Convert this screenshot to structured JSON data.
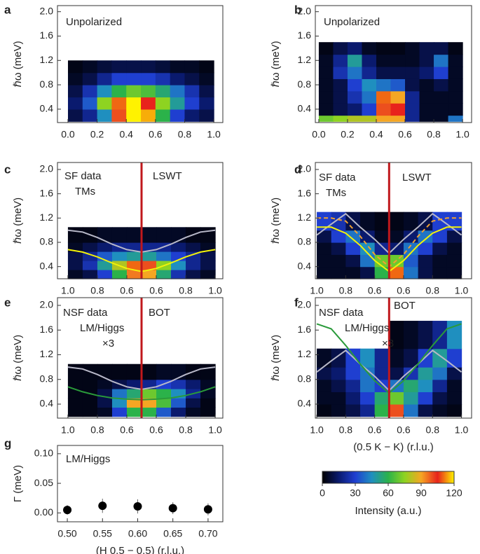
{
  "chart_data": [
    {
      "type": "heatmap",
      "label": "a",
      "annotations": [
        "Unpolarized"
      ],
      "ylabel": "ℏω (meV)",
      "xlim": [
        -0.072,
        1.062
      ],
      "ylim": [
        0.18,
        2.1
      ],
      "xticks": [
        {
          "value": 0,
          "label": "0.0"
        },
        0.2,
        0.4,
        0.6,
        0.8,
        {
          "value": 1,
          "label": "1.0"
        }
      ],
      "yticks": [
        0.4,
        0.8,
        1.2,
        1.6,
        {
          "value": 2,
          "label": "2.0"
        }
      ],
      "x_edges": [
        0,
        0.1,
        0.2,
        0.3,
        0.4,
        0.5,
        0.6,
        0.7,
        0.8,
        0.9,
        1.0
      ],
      "y_edges": [
        0.2,
        0.4,
        0.6,
        0.8,
        1.0,
        1.2
      ],
      "z": [
        [
          10,
          20,
          45,
          100,
          120,
          115,
          60,
          30,
          15,
          10
        ],
        [
          15,
          35,
          75,
          110,
          120,
          105,
          75,
          50,
          30,
          15
        ],
        [
          10,
          25,
          45,
          60,
          70,
          65,
          55,
          40,
          25,
          10
        ],
        [
          5,
          10,
          20,
          30,
          30,
          30,
          25,
          15,
          10,
          5
        ],
        [
          3,
          5,
          8,
          10,
          10,
          10,
          8,
          5,
          5,
          3
        ]
      ]
    },
    {
      "type": "heatmap",
      "label": "b",
      "annotations": [
        "Unpolarized"
      ],
      "ylabel": "ℏω (meV)",
      "xlim": [
        -0.024,
        1.063
      ],
      "ylim": [
        0.18,
        2.1
      ],
      "xticks": [
        {
          "value": 0,
          "label": "0.0"
        },
        0.2,
        0.4,
        0.6,
        0.8,
        {
          "value": 1,
          "label": "1.0"
        }
      ],
      "yticks": [
        0.4,
        0.8,
        1.2,
        1.6,
        {
          "value": 2,
          "label": "2.0"
        }
      ],
      "x_edges": [
        0,
        0.1,
        0.2,
        0.3,
        0.4,
        0.5,
        0.6,
        0.7,
        0.8,
        0.9,
        1.0
      ],
      "y_edges": [
        0.2,
        0.3,
        0.5,
        0.7,
        0.9,
        1.1,
        1.3,
        1.5
      ],
      "z": [
        [
          70,
          75,
          80,
          80,
          90,
          90,
          20,
          5,
          5,
          40
        ],
        [
          5,
          10,
          15,
          30,
          100,
          105,
          20,
          5,
          5,
          5
        ],
        [
          5,
          10,
          25,
          40,
          110,
          90,
          20,
          5,
          5,
          5
        ],
        [
          5,
          10,
          30,
          45,
          40,
          35,
          10,
          5,
          10,
          5
        ],
        [
          5,
          25,
          40,
          20,
          10,
          10,
          10,
          15,
          30,
          5
        ],
        [
          5,
          20,
          50,
          15,
          5,
          5,
          5,
          10,
          40,
          5
        ],
        [
          3,
          10,
          15,
          5,
          3,
          3,
          5,
          10,
          10,
          3
        ]
      ]
    },
    {
      "type": "heatmap",
      "label": "c",
      "annotations": [
        "SF data",
        "TMs",
        "LSWT"
      ],
      "ylabel": "ℏω (meV)",
      "divider_color": "#c0181c",
      "xlim": [
        -0.571,
        0.552
      ],
      "ylim": [
        0.2,
        2.115
      ],
      "xticks": [
        {
          "value": -0.5,
          "label": "1.0"
        },
        {
          "value": -0.3,
          "label": "0.8"
        },
        {
          "value": -0.1,
          "label": "0.6"
        },
        {
          "value": 0.1,
          "label": "0.6"
        },
        {
          "value": 0.3,
          "label": "0.8"
        },
        {
          "value": 0.5,
          "label": "1.0"
        }
      ],
      "yticks": [
        0.4,
        0.8,
        1.2,
        1.6,
        {
          "value": 2,
          "label": "2.0"
        }
      ],
      "x_edges": [
        -0.5,
        -0.4,
        -0.3,
        -0.2,
        -0.1,
        0,
        0.1,
        0.2,
        0.3,
        0.4,
        0.5
      ],
      "y_edges": [
        0.2,
        0.35,
        0.5,
        0.65,
        0.8,
        1.05
      ],
      "z": [
        [
          5,
          10,
          30,
          60,
          95,
          90,
          55,
          25,
          10,
          5
        ],
        [
          10,
          25,
          50,
          80,
          110,
          100,
          75,
          45,
          20,
          10
        ],
        [
          10,
          20,
          35,
          45,
          50,
          50,
          40,
          30,
          20,
          10
        ],
        [
          5,
          10,
          15,
          20,
          20,
          20,
          20,
          15,
          10,
          5
        ],
        [
          3,
          3,
          5,
          5,
          5,
          5,
          5,
          5,
          3,
          3
        ]
      ],
      "series": [
        {
          "color": "#b8b8c8",
          "x": [
            -0.5,
            -0.4,
            -0.3,
            -0.2,
            -0.1,
            0,
            0.1,
            0.2,
            0.3,
            0.4,
            0.5
          ],
          "values": [
            1.0,
            0.97,
            0.88,
            0.77,
            0.68,
            0.64,
            0.68,
            0.77,
            0.88,
            0.97,
            1.0
          ]
        },
        {
          "color": "#f2f20a",
          "x": [
            -0.5,
            -0.4,
            -0.3,
            -0.2,
            -0.1,
            0,
            0.1,
            0.2,
            0.3,
            0.4,
            0.5
          ],
          "values": [
            0.68,
            0.64,
            0.56,
            0.46,
            0.37,
            0.32,
            0.37,
            0.46,
            0.56,
            0.64,
            0.68
          ]
        }
      ]
    },
    {
      "type": "heatmap",
      "label": "d",
      "annotations": [
        "SF data",
        "TMs",
        "LSWT"
      ],
      "ylabel": "ℏω (meV)",
      "divider_color": "#c0181c",
      "xlim": [
        -0.51,
        0.57
      ],
      "ylim": [
        0.2,
        2.115
      ],
      "xticks": [
        {
          "value": -0.5,
          "label": "1.0"
        },
        {
          "value": -0.3,
          "label": "0.8"
        },
        {
          "value": -0.1,
          "label": "0.6"
        },
        {
          "value": 0.1,
          "label": "0.6"
        },
        {
          "value": 0.3,
          "label": "0.8"
        },
        {
          "value": 0.5,
          "label": "1.0"
        }
      ],
      "yticks": [
        0.4,
        0.8,
        1.2,
        1.6,
        {
          "value": 2,
          "label": "2.0"
        }
      ],
      "x_edges": [
        -0.5,
        -0.4,
        -0.3,
        -0.2,
        -0.1,
        0,
        0.1,
        0.2,
        0.3,
        0.4,
        0.5
      ],
      "y_edges": [
        0.2,
        0.4,
        0.6,
        0.8,
        1.0,
        1.3
      ],
      "z": [
        [
          5,
          5,
          5,
          10,
          60,
          110,
          40,
          10,
          5,
          5
        ],
        [
          5,
          5,
          10,
          40,
          70,
          70,
          35,
          10,
          5,
          5
        ],
        [
          5,
          10,
          30,
          45,
          20,
          15,
          40,
          30,
          10,
          5
        ],
        [
          10,
          30,
          40,
          15,
          5,
          5,
          15,
          40,
          30,
          10
        ],
        [
          30,
          25,
          10,
          5,
          3,
          3,
          5,
          10,
          30,
          30
        ]
      ],
      "series": [
        {
          "color": "#b8b8c8",
          "x": [
            -0.5,
            -0.4,
            -0.3,
            -0.2,
            -0.1,
            0,
            0.1,
            0.2,
            0.3,
            0.4,
            0.5
          ],
          "values": [
            0.92,
            1.1,
            1.27,
            1.05,
            0.85,
            0.62,
            0.85,
            1.05,
            1.27,
            1.1,
            0.92
          ]
        },
        {
          "color": "#f0a030",
          "dash": true,
          "x": [
            -0.5,
            -0.4,
            -0.3,
            -0.2,
            -0.1,
            0,
            0.1,
            0.2,
            0.3,
            0.4,
            0.5
          ],
          "values": [
            1.2,
            1.2,
            1.15,
            0.9,
            0.6,
            0.4,
            0.6,
            0.9,
            1.15,
            1.2,
            1.2
          ]
        },
        {
          "color": "#f2f20a",
          "x": [
            -0.5,
            -0.4,
            -0.3,
            -0.2,
            -0.1,
            0,
            0.1,
            0.2,
            0.3,
            0.4,
            0.5
          ],
          "values": [
            1.05,
            1.05,
            0.95,
            0.75,
            0.5,
            0.32,
            0.5,
            0.75,
            0.95,
            1.05,
            1.05
          ]
        }
      ]
    },
    {
      "type": "heatmap",
      "label": "e",
      "annotations": [
        "NSF data",
        "LM/Higgs",
        "×3",
        "BOT"
      ],
      "ylabel": "ℏω (meV)",
      "divider_color": "#c0181c",
      "xlim": [
        -0.571,
        0.552
      ],
      "ylim": [
        0.173,
        2.125
      ],
      "xticks": [
        {
          "value": -0.5,
          "label": "1.0"
        },
        {
          "value": -0.3,
          "label": "0.8"
        },
        {
          "value": -0.1,
          "label": "0.6"
        },
        {
          "value": 0.1,
          "label": "0.6"
        },
        {
          "value": 0.3,
          "label": "0.8"
        },
        {
          "value": 0.5,
          "label": "1.0"
        }
      ],
      "yticks": [
        0.4,
        0.8,
        1.2,
        1.6,
        {
          "value": 2,
          "label": "2.0"
        }
      ],
      "x_edges": [
        -0.5,
        -0.4,
        -0.3,
        -0.2,
        -0.1,
        0,
        0.1,
        0.2,
        0.3,
        0.4,
        0.5
      ],
      "y_edges": [
        0.2,
        0.35,
        0.5,
        0.65,
        0.8,
        1.05
      ],
      "z": [
        [
          3,
          3,
          5,
          30,
          60,
          60,
          35,
          15,
          5,
          3
        ],
        [
          3,
          3,
          10,
          45,
          90,
          90,
          65,
          35,
          10,
          3
        ],
        [
          3,
          3,
          10,
          40,
          55,
          70,
          60,
          45,
          20,
          5
        ],
        [
          3,
          3,
          5,
          10,
          15,
          20,
          30,
          25,
          15,
          5
        ],
        [
          3,
          3,
          3,
          3,
          3,
          3,
          5,
          5,
          3,
          3
        ]
      ],
      "series": [
        {
          "color": "#b8b8c8",
          "x": [
            -0.5,
            -0.4,
            -0.3,
            -0.2,
            -0.1,
            0,
            0.1,
            0.2,
            0.3,
            0.4,
            0.5
          ],
          "values": [
            1.0,
            0.97,
            0.88,
            0.77,
            0.68,
            0.64,
            0.68,
            0.77,
            0.88,
            0.97,
            1.0
          ]
        },
        {
          "color": "#2a9a3a",
          "x": [
            -0.5,
            -0.4,
            -0.3,
            -0.2,
            -0.1,
            0,
            0.1,
            0.2,
            0.3,
            0.4,
            0.5
          ],
          "values": [
            0.68,
            0.6,
            0.54,
            0.5,
            0.48,
            0.47,
            0.48,
            0.5,
            0.54,
            0.6,
            0.68
          ]
        }
      ]
    },
    {
      "type": "heatmap",
      "label": "f",
      "annotations": [
        "NSF data",
        "LM/Higgs",
        "×3",
        "BOT"
      ],
      "ylabel": "ℏω (meV)",
      "xlabel": "(0.5 K − K) (r.l.u.)",
      "divider_color": "#c0181c",
      "xlim": [
        -0.51,
        0.57
      ],
      "ylim": [
        0.173,
        2.125
      ],
      "xticks": [
        {
          "value": -0.5,
          "label": "1.0"
        },
        {
          "value": -0.3,
          "label": "0.8"
        },
        {
          "value": -0.1,
          "label": "0.6"
        },
        {
          "value": 0.1,
          "label": "0.6"
        },
        {
          "value": 0.3,
          "label": "0.8"
        },
        {
          "value": 0.5,
          "label": "1.0"
        }
      ],
      "yticks": [
        0.4,
        0.8,
        1.2,
        1.6,
        {
          "value": 2,
          "label": "2.0"
        }
      ],
      "x_edges": [
        -0.5,
        -0.4,
        -0.3,
        -0.2,
        -0.1,
        0,
        0.1,
        0.2,
        0.3,
        0.4,
        0.5
      ],
      "y_edges": [
        0.2,
        0.4,
        0.6,
        0.8,
        1.0,
        1.3,
        1.75
      ],
      "z": [
        [
          3,
          5,
          10,
          20,
          60,
          100,
          40,
          10,
          5,
          3
        ],
        [
          5,
          5,
          15,
          30,
          55,
          70,
          50,
          30,
          10,
          5
        ],
        [
          5,
          10,
          20,
          40,
          30,
          40,
          55,
          45,
          20,
          5
        ],
        [
          10,
          15,
          30,
          40,
          20,
          10,
          25,
          50,
          40,
          10
        ],
        [
          5,
          10,
          30,
          45,
          20,
          5,
          10,
          30,
          50,
          30
        ],
        [
          null,
          null,
          null,
          null,
          null,
          3,
          5,
          10,
          20,
          45
        ]
      ],
      "series": [
        {
          "color": "#b8b8c8",
          "x": [
            -0.5,
            -0.4,
            -0.3,
            -0.2,
            -0.1,
            0,
            0.1,
            0.2,
            0.3,
            0.4,
            0.5
          ],
          "values": [
            0.92,
            1.1,
            1.27,
            1.05,
            0.85,
            0.62,
            0.85,
            1.05,
            1.27,
            1.1,
            0.92
          ]
        },
        {
          "color": "#2a9a3a",
          "x": [
            -0.5,
            -0.4,
            -0.3,
            -0.2,
            -0.1,
            0,
            0.1,
            0.2,
            0.3,
            0.4,
            0.5
          ],
          "values": [
            1.7,
            1.62,
            1.35,
            1.05,
            0.78,
            0.58,
            0.78,
            1.05,
            1.35,
            1.62,
            1.7
          ]
        }
      ]
    },
    {
      "type": "scatter",
      "label": "g",
      "annotations": [
        "LM/Higgs"
      ],
      "ylabel": "Γ (meV)",
      "xlabel": "(H 0.5 − 0.5) (r.l.u.)",
      "xlim": [
        0.486,
        0.721
      ],
      "ylim": [
        -0.015,
        0.114
      ],
      "xticks": [
        {
          "value": 0.5,
          "label": "0.50"
        },
        {
          "value": 0.55,
          "label": "0.55"
        },
        {
          "value": 0.6,
          "label": "0.60"
        },
        {
          "value": 0.65,
          "label": "0.65"
        },
        {
          "value": 0.7,
          "label": "0.70"
        }
      ],
      "yticks": [
        {
          "value": 0,
          "label": "0.00"
        },
        {
          "value": 0.05,
          "label": "0.05"
        },
        {
          "value": 0.1,
          "label": "0.10"
        }
      ],
      "x": [
        0.5,
        0.55,
        0.6,
        0.65,
        0.7
      ],
      "values": [
        0.005,
        0.012,
        0.011,
        0.008,
        0.006
      ],
      "errors": [
        0.008,
        0.012,
        0.012,
        0.01,
        0.01
      ],
      "color": "#000000"
    },
    {
      "type": "colorbar",
      "label": "Intensity (a.u.)",
      "clim": [
        0,
        120
      ],
      "ticks": [
        0,
        30,
        60,
        90,
        120
      ],
      "colormap": [
        "#000000",
        "#0a1a6e",
        "#1f3fd0",
        "#1f8fbf",
        "#2bb24a",
        "#8ed321",
        "#f5a623",
        "#e8231c",
        "#fff200"
      ]
    }
  ]
}
